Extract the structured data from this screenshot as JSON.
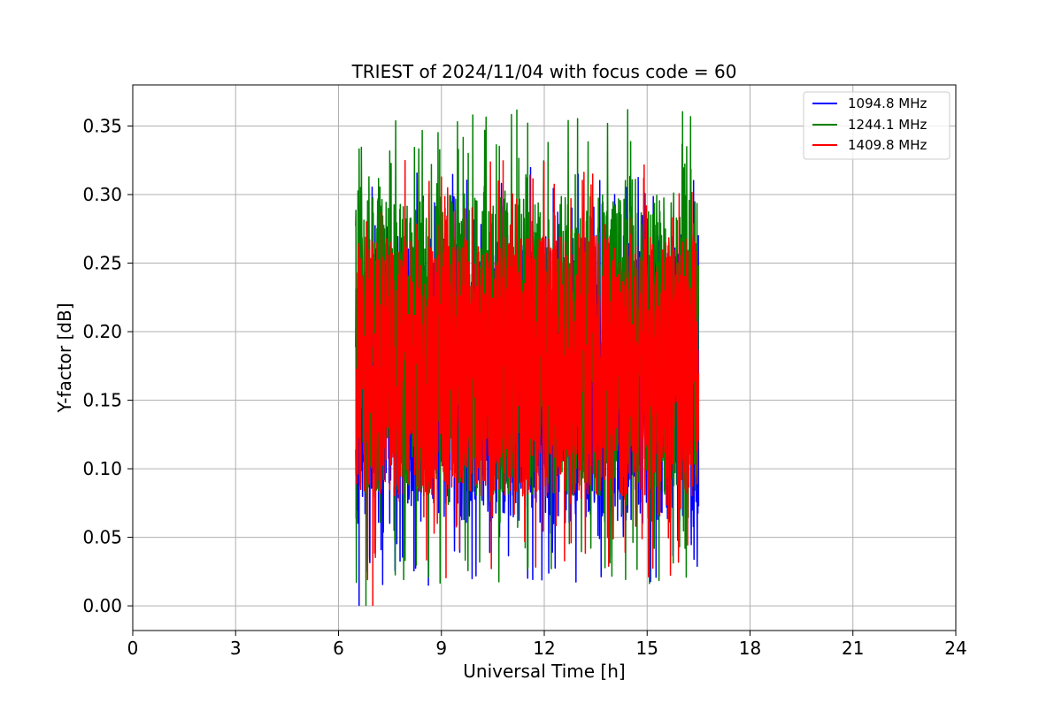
{
  "chart_data": {
    "type": "line",
    "title": "TRIEST of 2024/11/04 with focus code = 60",
    "xlabel": "Universal Time [h]",
    "ylabel": "Y-factor [dB]",
    "xlim": [
      0,
      24
    ],
    "ylim": [
      -0.018,
      0.38
    ],
    "xticks": [
      0,
      3,
      6,
      9,
      12,
      15,
      18,
      21,
      24
    ],
    "xtick_labels": [
      "0",
      "3",
      "6",
      "9",
      "12",
      "15",
      "18",
      "21",
      "24"
    ],
    "yticks": [
      0.0,
      0.05,
      0.1,
      0.15,
      0.2,
      0.25,
      0.3,
      0.35
    ],
    "ytick_labels": [
      "0.00",
      "0.05",
      "0.10",
      "0.15",
      "0.20",
      "0.25",
      "0.30",
      "0.35"
    ],
    "grid": true,
    "legend_position": "top-right",
    "x_range_of_data": [
      6.5,
      16.5
    ],
    "series": [
      {
        "name": "1094.8 MHz",
        "color": "#0000ff",
        "center": 0.165,
        "band_low": 0.06,
        "band_high": 0.27,
        "min": 0.0,
        "max": 0.32
      },
      {
        "name": "1244.1 MHz",
        "color": "#008000",
        "center": 0.18,
        "band_low": 0.08,
        "band_high": 0.3,
        "min": 0.0,
        "max": 0.362
      },
      {
        "name": "1409.8 MHz",
        "color": "#ff0000",
        "center": 0.175,
        "band_low": 0.08,
        "band_high": 0.27,
        "min": 0.0,
        "max": 0.325
      }
    ]
  }
}
